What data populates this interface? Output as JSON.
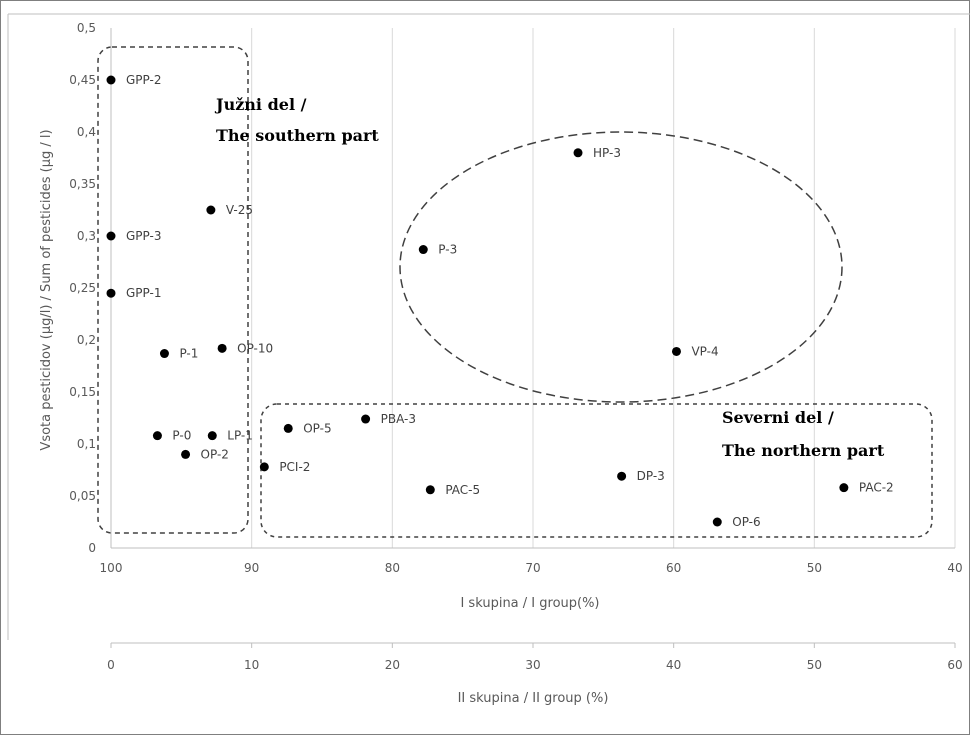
{
  "chart_data": {
    "type": "scatter",
    "ylabel": "Vsota pesticidov (µg/l) / Sum of pesticides (µg / l)",
    "xlabel": "I skupina / I group(%)",
    "x2label": "II skupina / II group (%)",
    "ylim": [
      0,
      0.5
    ],
    "xlim": [
      100,
      40
    ],
    "x2lim": [
      0,
      60
    ],
    "yticks": [
      "0",
      "0,05",
      "0,1",
      "0,15",
      "0,2",
      "0,25",
      "0,3",
      "0,35",
      "0,4",
      "0,45",
      "0,5"
    ],
    "xticks": [
      "100",
      "90",
      "80",
      "70",
      "60",
      "50",
      "40"
    ],
    "x2ticks": [
      "0",
      "10",
      "20",
      "30",
      "40",
      "50",
      "60"
    ],
    "grid": "vertical",
    "points": [
      {
        "label": "GPP-2",
        "x": 100,
        "y": 0.45
      },
      {
        "label": "GPP-3",
        "x": 100,
        "y": 0.3
      },
      {
        "label": "GPP-1",
        "x": 100,
        "y": 0.245
      },
      {
        "label": "V-25",
        "x": 92.9,
        "y": 0.325
      },
      {
        "label": "P-1",
        "x": 96.2,
        "y": 0.187
      },
      {
        "label": "OP-10",
        "x": 92.1,
        "y": 0.192
      },
      {
        "label": "P-0",
        "x": 96.7,
        "y": 0.108
      },
      {
        "label": "LP-1",
        "x": 92.8,
        "y": 0.108
      },
      {
        "label": "OP-2",
        "x": 94.7,
        "y": 0.09
      },
      {
        "label": "OP-5",
        "x": 87.4,
        "y": 0.115
      },
      {
        "label": "PCI-2",
        "x": 89.1,
        "y": 0.078
      },
      {
        "label": "PBA-3",
        "x": 81.9,
        "y": 0.124
      },
      {
        "label": "PAC-5",
        "x": 77.3,
        "y": 0.056
      },
      {
        "label": "P-3",
        "x": 77.8,
        "y": 0.287
      },
      {
        "label": "HP-3",
        "x": 66.8,
        "y": 0.38
      },
      {
        "label": "VP-4",
        "x": 59.8,
        "y": 0.189
      },
      {
        "label": "DP-3",
        "x": 63.7,
        "y": 0.069
      },
      {
        "label": "OP-6",
        "x": 56.9,
        "y": 0.025
      },
      {
        "label": "PAC-2",
        "x": 47.9,
        "y": 0.058
      }
    ],
    "annotations": [
      {
        "lines": [
          "Južni del /",
          "The southern part"
        ]
      },
      {
        "lines": [
          "Severni del /",
          "The northern part"
        ]
      }
    ]
  }
}
